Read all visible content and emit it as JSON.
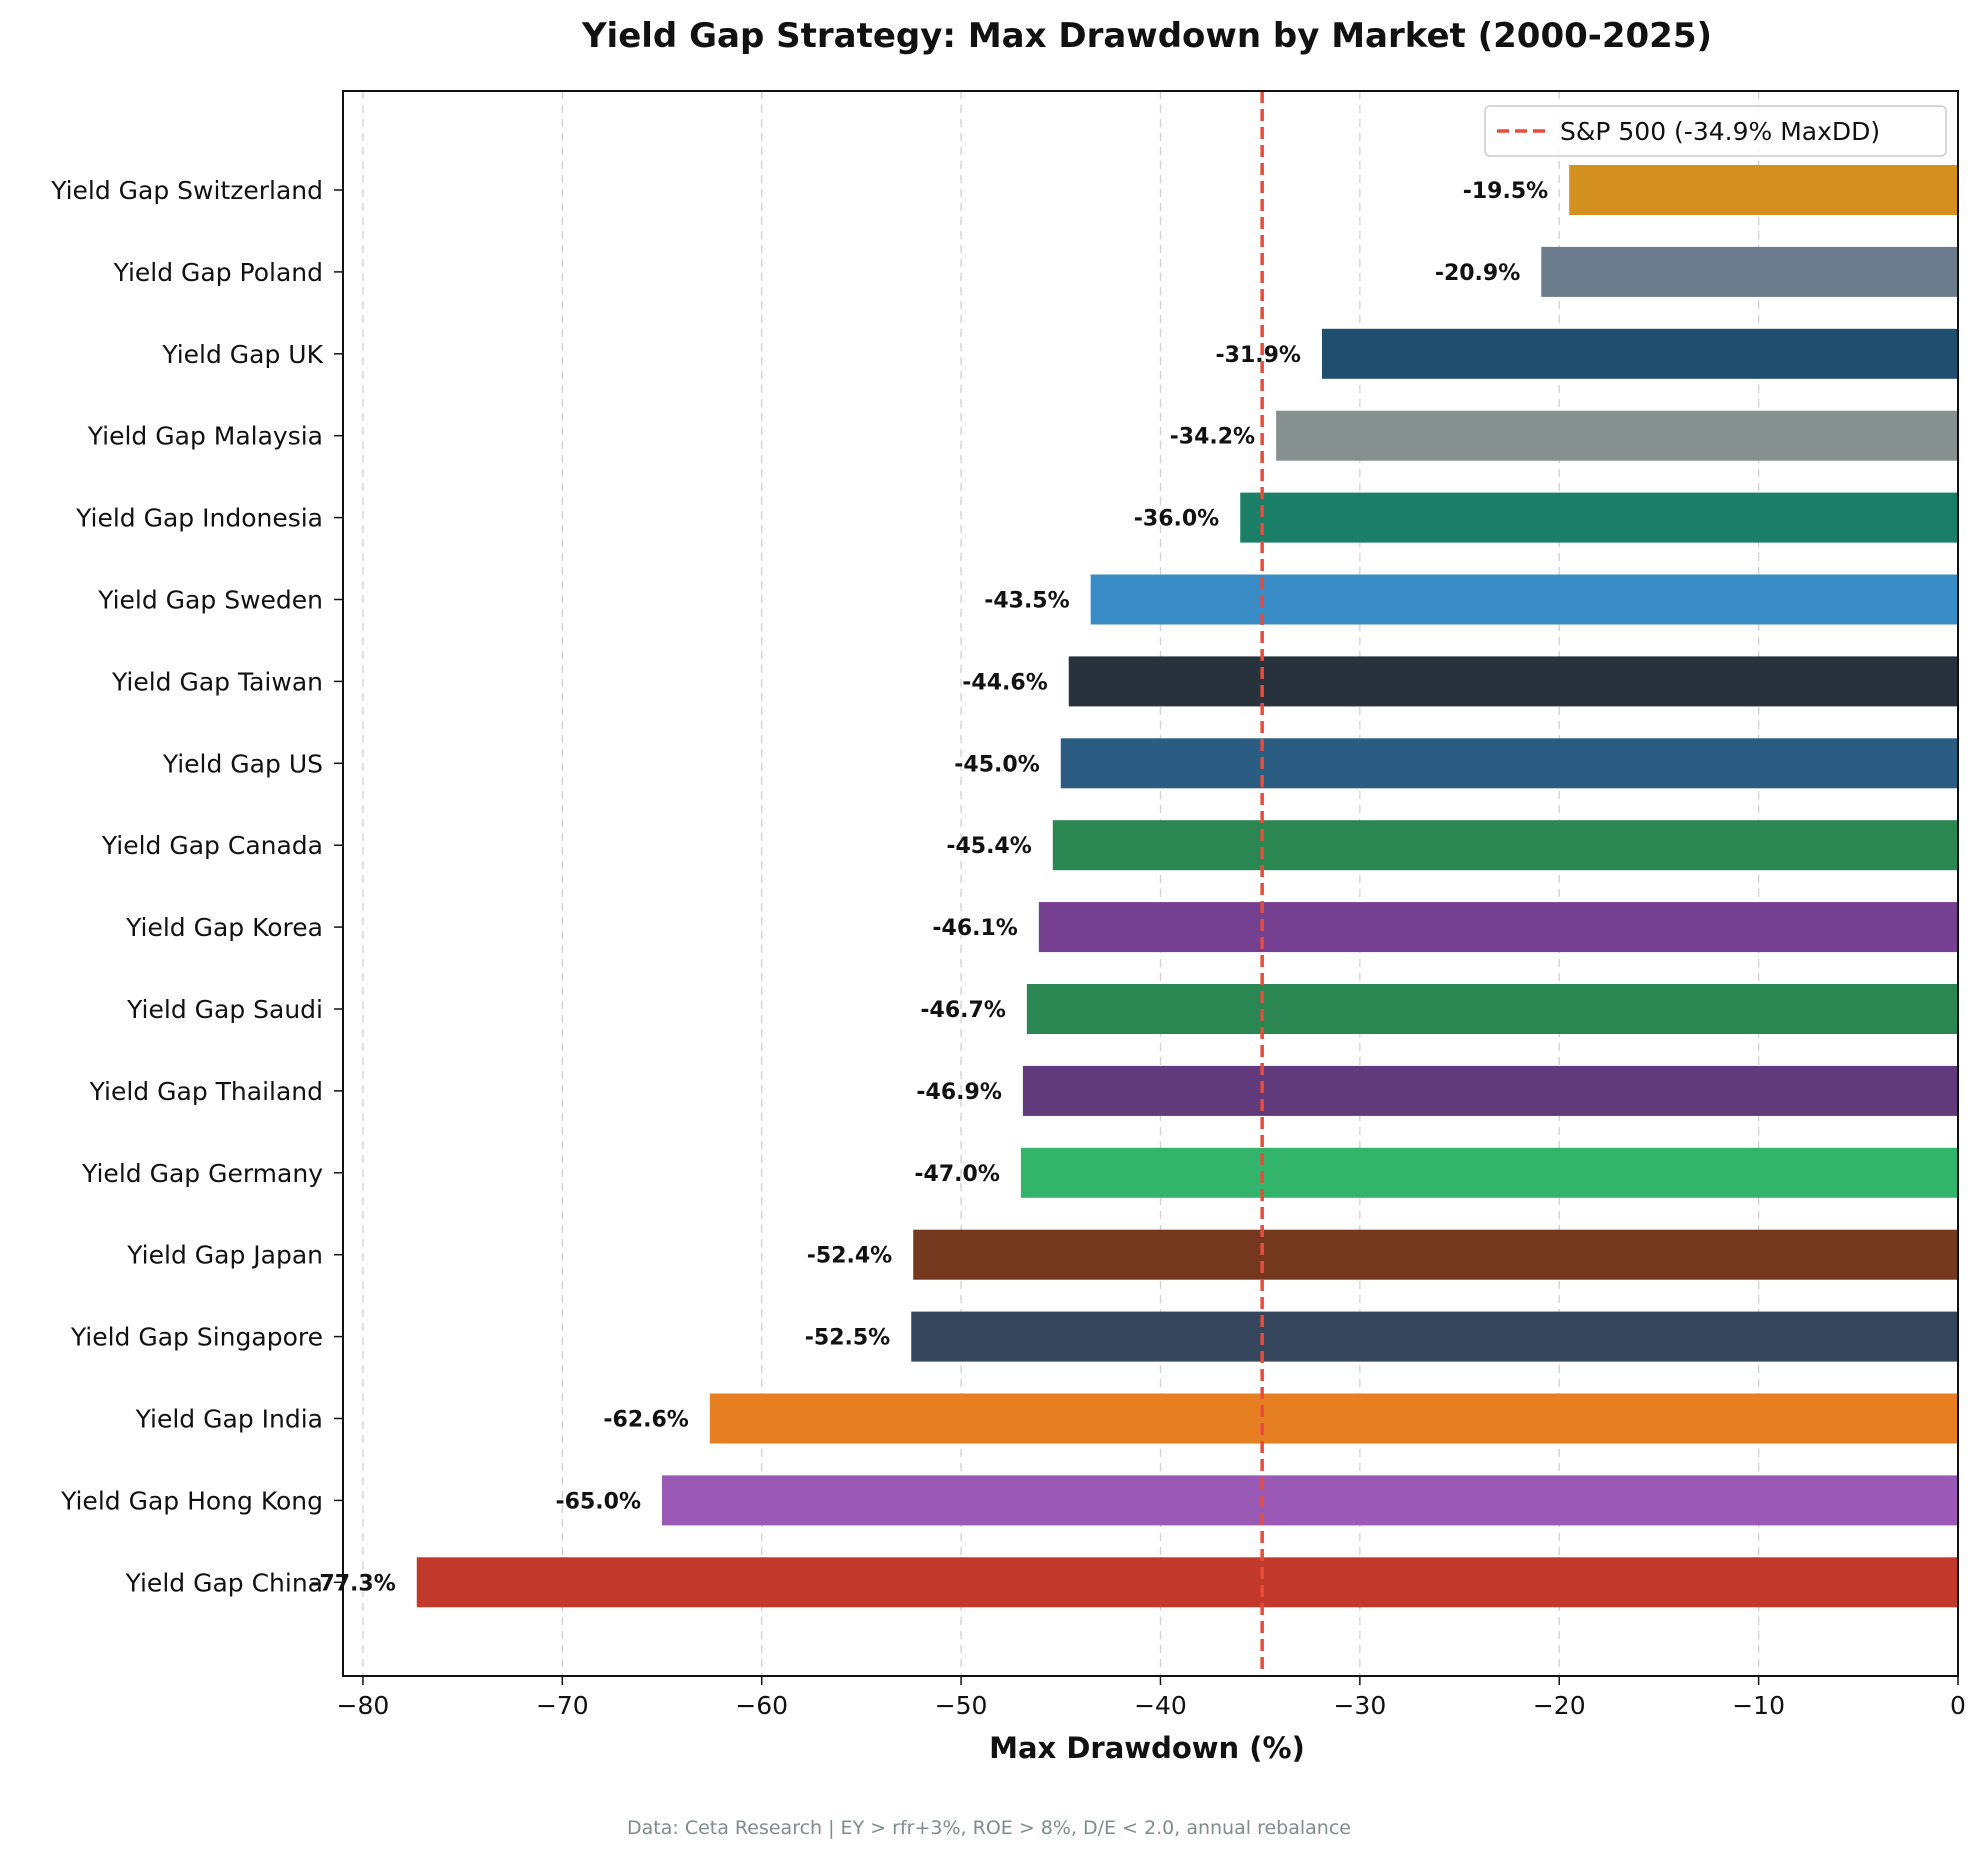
{
  "chart_data": {
    "type": "bar",
    "orientation": "horizontal",
    "title": "Yield Gap Strategy: Max Drawdown by Market (2000-2025)",
    "xlabel": "Max Drawdown (%)",
    "ylabel": "",
    "xlim": [
      -81,
      0
    ],
    "xticks": [
      -80,
      -70,
      -60,
      -50,
      -40,
      -30,
      -20,
      -10,
      0
    ],
    "xtick_labels": [
      "−80",
      "−70",
      "−60",
      "−50",
      "−40",
      "−30",
      "−20",
      "−10",
      "0"
    ],
    "grid": "vertical, dashed",
    "legend_position": "top-right",
    "categories": [
      "Yield Gap Switzerland",
      "Yield Gap Poland",
      "Yield Gap UK",
      "Yield Gap Malaysia",
      "Yield Gap Indonesia",
      "Yield Gap Sweden",
      "Yield Gap Taiwan",
      "Yield Gap US",
      "Yield Gap Canada",
      "Yield Gap Korea",
      "Yield Gap Saudi",
      "Yield Gap Thailand",
      "Yield Gap Germany",
      "Yield Gap Japan",
      "Yield Gap Singapore",
      "Yield Gap India",
      "Yield Gap Hong Kong",
      "Yield Gap China"
    ],
    "values": [
      -19.5,
      -20.9,
      -31.9,
      -34.2,
      -36.0,
      -43.5,
      -44.6,
      -45.0,
      -45.4,
      -46.1,
      -46.7,
      -46.9,
      -47.0,
      -52.4,
      -52.5,
      -62.6,
      -65.0,
      -77.3
    ],
    "data_labels": [
      "-19.5%",
      "-20.9%",
      "-31.9%",
      "-34.2%",
      "-36.0%",
      "-43.5%",
      "-44.6%",
      "-45.0%",
      "-45.4%",
      "-46.1%",
      "-46.7%",
      "-46.9%",
      "-47.0%",
      "-52.4%",
      "-52.5%",
      "-62.6%",
      "-65.0%",
      "-77.3%"
    ],
    "colors": [
      "#d4901e",
      "#6b7b8c",
      "#1f4e6e",
      "#86918f",
      "#1b7f68",
      "#3a8cc6",
      "#27323d",
      "#2b5c82",
      "#2b8752",
      "#74408f",
      "#2b8752",
      "#613a7c",
      "#32b56a",
      "#74381f",
      "#36465c",
      "#e67e22",
      "#9b59b6",
      "#c0392b"
    ],
    "reference_line": {
      "value": -34.9,
      "label": "S&P 500 (-34.9% MaxDD)",
      "color": "#e74c3c",
      "style": "dashed"
    },
    "source_note": "Data: Ceta Research | EY > rfr+3%, ROE > 8%, D/E < 2.0, annual rebalance"
  }
}
